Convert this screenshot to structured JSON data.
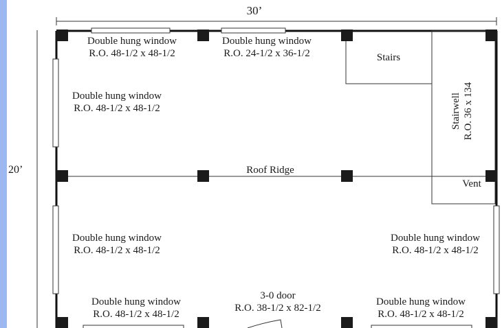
{
  "plan": {
    "dims": {
      "width": "30’",
      "depth": "20’"
    },
    "windows": {
      "top_left": {
        "line1": "Double hung window",
        "line2": "R.O. 48-1/2 x 48-1/2"
      },
      "top_middle": {
        "line1": "Double hung window",
        "line2": "R.O. 24-1/2 x 36-1/2"
      },
      "left_upper": {
        "line1": "Double hung window",
        "line2": "R.O. 48-1/2 x 48-1/2"
      },
      "left_lower": {
        "line1": "Double hung window",
        "line2": "R.O. 48-1/2 x 48-1/2"
      },
      "right_lower": {
        "line1": "Double hung window",
        "line2": "R.O. 48-1/2 x 48-1/2"
      },
      "bottom_left": {
        "line1": "Double hung window",
        "line2": "R.O. 48-1/2 x 48-1/2"
      },
      "bottom_right": {
        "line1": "Double hung window",
        "line2": "R.O. 48-1/2 x 48-1/2"
      }
    },
    "door": {
      "line1": "3-0 door",
      "line2": "R.O. 38-1/2 x 82-1/2"
    },
    "stairs": "Stairs",
    "stairwell": {
      "line1": "Stairwell",
      "line2": "R.O. 36 x 134"
    },
    "vent": "Vent",
    "roof_ridge": "Roof Ridge"
  }
}
